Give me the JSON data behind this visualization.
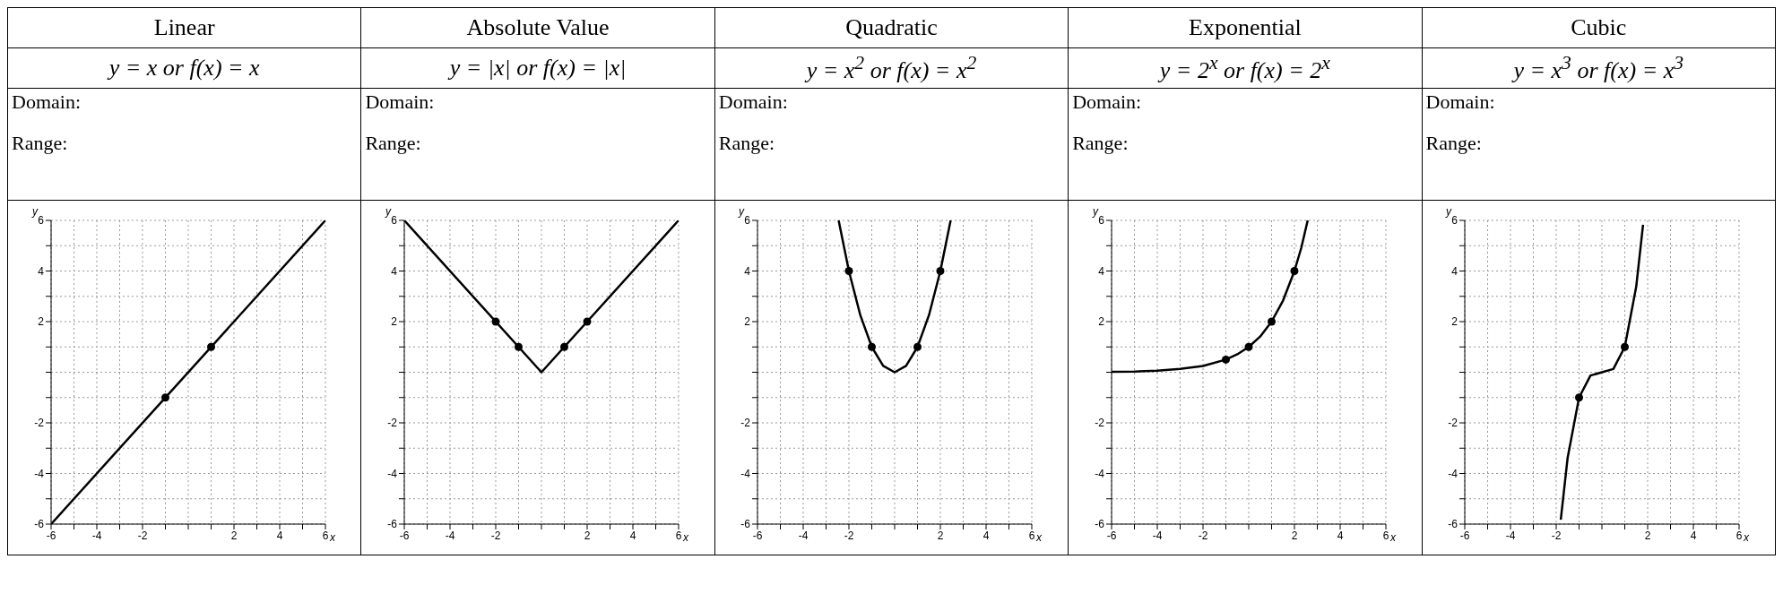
{
  "chart_data": [
    {
      "type": "line",
      "title": "Linear",
      "subtitle": "y = x or f(x) = x",
      "annotations": [
        "Domain:",
        "Range:"
      ],
      "xlabel": "x",
      "ylabel": "y",
      "xlim": [
        -6,
        6
      ],
      "ylim": [
        -6,
        6
      ],
      "grid": true,
      "line_style": "solid",
      "xticks": [
        -6,
        {
          "value": -5,
          "label": null
        },
        -4,
        {
          "value": -3,
          "label": null
        },
        -2,
        {
          "value": -1,
          "label": null
        },
        {
          "value": 0,
          "label": null
        },
        {
          "value": 1,
          "label": null
        },
        2,
        {
          "value": 3,
          "label": null
        },
        4,
        {
          "value": 5,
          "label": null
        },
        6
      ],
      "yticks": [
        -6,
        {
          "value": -5,
          "label": null
        },
        -4,
        {
          "value": -3,
          "label": null
        },
        -2,
        {
          "value": -1,
          "label": null
        },
        {
          "value": 0,
          "label": null
        },
        {
          "value": 1,
          "label": null
        },
        2,
        {
          "value": 3,
          "label": null
        },
        4,
        {
          "value": 5,
          "label": null
        },
        6
      ],
      "series": [
        {
          "type": "line",
          "color": "#000000",
          "x": [
            -6,
            6
          ],
          "values": [
            -6,
            6
          ]
        },
        {
          "type": "scatter",
          "marker": "circle",
          "color": "#000000",
          "x": [
            -1,
            1
          ],
          "values": [
            -1,
            1
          ]
        }
      ]
    },
    {
      "type": "line",
      "title": "Absolute Value",
      "subtitle": "y = |x| or f(x) = |x|",
      "annotations": [
        "Domain:",
        "Range:"
      ],
      "xlabel": "x",
      "ylabel": "y",
      "xlim": [
        -6,
        6
      ],
      "ylim": [
        -6,
        6
      ],
      "grid": true,
      "line_style": "solid",
      "xticks": [
        -6,
        {
          "value": -5,
          "label": null
        },
        -4,
        {
          "value": -3,
          "label": null
        },
        -2,
        {
          "value": -1,
          "label": null
        },
        {
          "value": 0,
          "label": null
        },
        {
          "value": 1,
          "label": null
        },
        2,
        {
          "value": 3,
          "label": null
        },
        4,
        {
          "value": 5,
          "label": null
        },
        6
      ],
      "yticks": [
        -6,
        {
          "value": -5,
          "label": null
        },
        -4,
        {
          "value": -3,
          "label": null
        },
        -2,
        {
          "value": -1,
          "label": null
        },
        {
          "value": 0,
          "label": null
        },
        {
          "value": 1,
          "label": null
        },
        2,
        {
          "value": 3,
          "label": null
        },
        4,
        {
          "value": 5,
          "label": null
        },
        6
      ],
      "series": [
        {
          "type": "line",
          "color": "#000000",
          "x": [
            -6,
            0,
            6
          ],
          "values": [
            6,
            0,
            6
          ]
        },
        {
          "type": "scatter",
          "marker": "circle",
          "color": "#000000",
          "x": [
            -2,
            -1,
            1,
            2
          ],
          "values": [
            2,
            1,
            1,
            2
          ]
        }
      ]
    },
    {
      "type": "line",
      "title": "Quadratic",
      "subtitle": "y = x$^{2}$ or f(x) = x$^{2}$",
      "annotations": [
        "Domain:",
        "Range:"
      ],
      "xlabel": "x",
      "ylabel": "y",
      "xlim": [
        -6,
        6
      ],
      "ylim": [
        -6,
        6
      ],
      "grid": true,
      "line_style": "solid",
      "xticks": [
        -6,
        {
          "value": -5,
          "label": null
        },
        -4,
        {
          "value": -3,
          "label": null
        },
        -2,
        {
          "value": -1,
          "label": null
        },
        {
          "value": 0,
          "label": null
        },
        {
          "value": 1,
          "label": null
        },
        2,
        {
          "value": 3,
          "label": null
        },
        4,
        {
          "value": 5,
          "label": null
        },
        6
      ],
      "yticks": [
        -6,
        {
          "value": -5,
          "label": null
        },
        -4,
        {
          "value": -3,
          "label": null
        },
        -2,
        {
          "value": -1,
          "label": null
        },
        {
          "value": 0,
          "label": null
        },
        {
          "value": 1,
          "label": null
        },
        2,
        {
          "value": 3,
          "label": null
        },
        4,
        {
          "value": 5,
          "label": null
        },
        6
      ],
      "series": [
        {
          "type": "line",
          "color": "#000000",
          "x": [
            -2.45,
            -2,
            -1.5,
            -1,
            -0.5,
            0,
            0.5,
            1,
            1.5,
            2,
            2.45
          ],
          "values": [
            6,
            4,
            2.25,
            1,
            0.25,
            0,
            0.25,
            1,
            2.25,
            4,
            6
          ]
        },
        {
          "type": "scatter",
          "marker": "circle",
          "color": "#000000",
          "x": [
            -2,
            -1,
            1,
            2
          ],
          "values": [
            4,
            1,
            1,
            4
          ]
        }
      ]
    },
    {
      "type": "line",
      "title": "Exponential",
      "subtitle": "y = 2$^{x}$ or f(x) = 2$^{x}$",
      "annotations": [
        "Domain:",
        "Range:"
      ],
      "xlabel": "x",
      "ylabel": "y",
      "xlim": [
        -6,
        6
      ],
      "ylim": [
        -6,
        6
      ],
      "grid": true,
      "line_style": "solid",
      "xticks": [
        -6,
        {
          "value": -5,
          "label": null
        },
        -4,
        {
          "value": -3,
          "label": null
        },
        -2,
        {
          "value": -1,
          "label": null
        },
        {
          "value": 0,
          "label": null
        },
        {
          "value": 1,
          "label": null
        },
        2,
        {
          "value": 3,
          "label": null
        },
        4,
        {
          "value": 5,
          "label": null
        },
        6
      ],
      "yticks": [
        -6,
        {
          "value": -5,
          "label": null
        },
        -4,
        {
          "value": -3,
          "label": null
        },
        -2,
        {
          "value": -1,
          "label": null
        },
        {
          "value": 0,
          "label": null
        },
        {
          "value": 1,
          "label": null
        },
        2,
        {
          "value": 3,
          "label": null
        },
        4,
        {
          "value": 5,
          "label": null
        },
        6
      ],
      "series": [
        {
          "type": "line",
          "color": "#000000",
          "x": [
            -6,
            -5,
            -4,
            -3,
            -2,
            -1,
            -0.5,
            0,
            0.5,
            1,
            1.5,
            2,
            2.3,
            2.58
          ],
          "values": [
            0.02,
            0.03,
            0.06,
            0.13,
            0.25,
            0.5,
            0.71,
            1,
            1.41,
            2,
            2.83,
            4,
            4.92,
            6
          ]
        },
        {
          "type": "scatter",
          "marker": "circle",
          "color": "#000000",
          "x": [
            -1,
            0,
            1,
            2
          ],
          "values": [
            0.5,
            1,
            2,
            4
          ]
        }
      ]
    },
    {
      "type": "line",
      "title": "Cubic",
      "subtitle": "y = x$^{3}$ or f(x) = x$^{3}$",
      "annotations": [
        "Domain:",
        "Range:"
      ],
      "xlabel": "x",
      "ylabel": "y",
      "xlim": [
        -6,
        6
      ],
      "ylim": [
        -6,
        6
      ],
      "grid": true,
      "line_style": "solid",
      "xticks": [
        -6,
        {
          "value": -5,
          "label": null
        },
        -4,
        {
          "value": -3,
          "label": null
        },
        -2,
        {
          "value": -1,
          "label": null
        },
        {
          "value": 0,
          "label": null
        },
        {
          "value": 1,
          "label": null
        },
        2,
        {
          "value": 3,
          "label": null
        },
        4,
        {
          "value": 5,
          "label": null
        },
        6
      ],
      "yticks": [
        -6,
        {
          "value": -5,
          "label": null
        },
        -4,
        {
          "value": -3,
          "label": null
        },
        -2,
        {
          "value": -1,
          "label": null
        },
        {
          "value": 0,
          "label": null
        },
        {
          "value": 1,
          "label": null
        },
        2,
        {
          "value": 3,
          "label": null
        },
        4,
        {
          "value": 5,
          "label": null
        },
        6
      ],
      "series": [
        {
          "type": "line",
          "color": "#000000",
          "x": [
            -1.8,
            -1.5,
            -1,
            -0.5,
            0,
            0.5,
            1,
            1.5,
            1.8
          ],
          "values": [
            -5.83,
            -3.38,
            -1,
            -0.13,
            0,
            0.13,
            1,
            3.38,
            5.83
          ]
        },
        {
          "type": "scatter",
          "marker": "circle",
          "color": "#000000",
          "x": [
            -1,
            1
          ],
          "values": [
            -1,
            1
          ]
        }
      ]
    }
  ]
}
